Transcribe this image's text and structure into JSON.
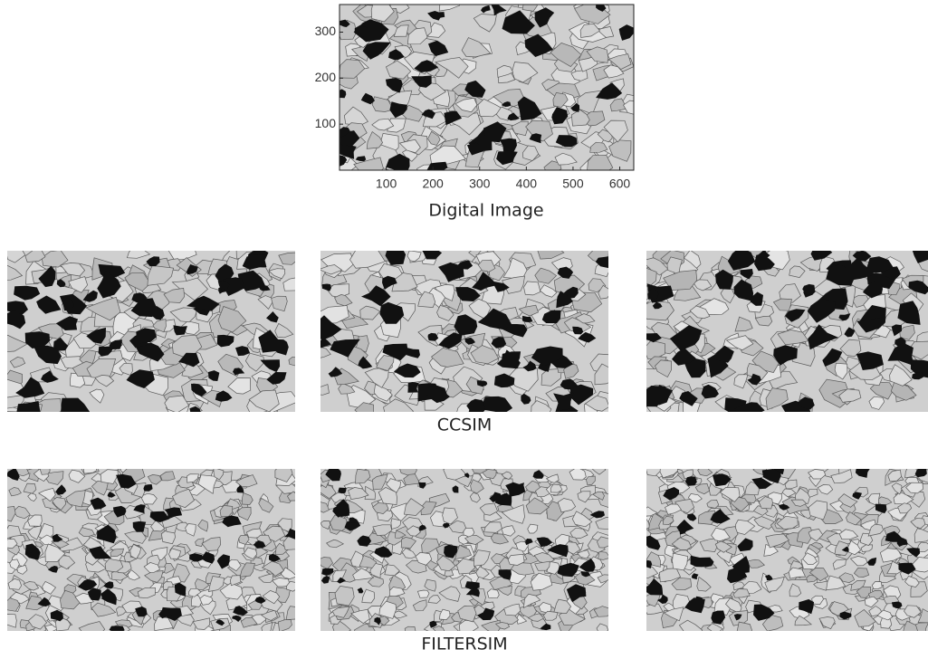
{
  "top_panel": {
    "xlim": [
      0,
      630
    ],
    "xticks": [
      100,
      200,
      300,
      400,
      500,
      600
    ],
    "ylim": [
      0,
      360
    ],
    "yticks": [
      100,
      200,
      300
    ],
    "caption": "Digital Image"
  },
  "rows": [
    {
      "caption": "CCSIM"
    },
    {
      "caption": "FILTERSIM"
    }
  ]
}
